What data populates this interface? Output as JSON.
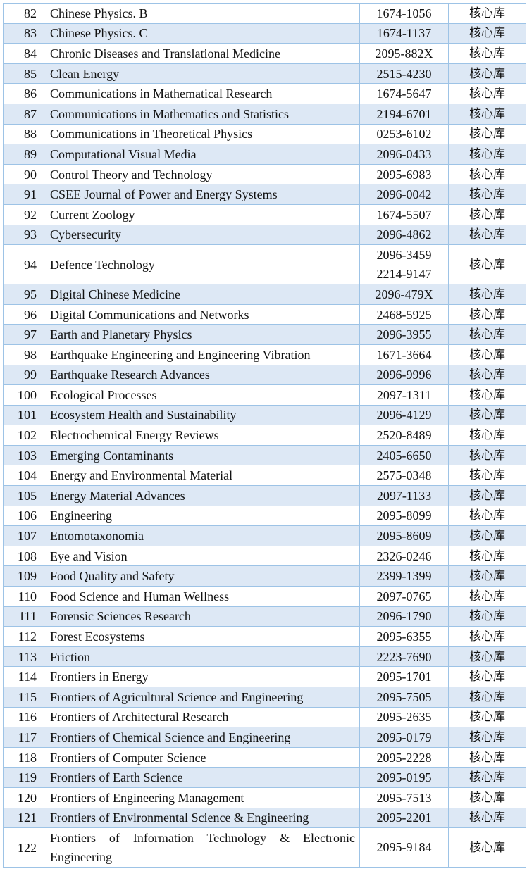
{
  "rows": [
    {
      "no": "82",
      "title": "Chinese Physics. B",
      "issn": [
        "1674-1056"
      ],
      "library": "核心库"
    },
    {
      "no": "83",
      "title": "Chinese Physics. C",
      "issn": [
        "1674-1137"
      ],
      "library": "核心库"
    },
    {
      "no": "84",
      "title": "Chronic Diseases and Translational Medicine",
      "issn": [
        "2095-882X"
      ],
      "library": "核心库"
    },
    {
      "no": "85",
      "title": "Clean Energy",
      "issn": [
        "2515-4230"
      ],
      "library": "核心库"
    },
    {
      "no": "86",
      "title": "Communications in Mathematical Research",
      "issn": [
        "1674-5647"
      ],
      "library": "核心库"
    },
    {
      "no": "87",
      "title": "Communications in Mathematics and Statistics",
      "issn": [
        "2194-6701"
      ],
      "library": "核心库"
    },
    {
      "no": "88",
      "title": "Communications in Theoretical Physics",
      "issn": [
        "0253-6102"
      ],
      "library": "核心库"
    },
    {
      "no": "89",
      "title": "Computational Visual Media",
      "issn": [
        "2096-0433"
      ],
      "library": "核心库"
    },
    {
      "no": "90",
      "title": "Control Theory and Technology",
      "issn": [
        "2095-6983"
      ],
      "library": "核心库"
    },
    {
      "no": "91",
      "title": "CSEE Journal of Power and Energy Systems",
      "issn": [
        "2096-0042"
      ],
      "library": "核心库"
    },
    {
      "no": "92",
      "title": "Current Zoology",
      "issn": [
        "1674-5507"
      ],
      "library": "核心库"
    },
    {
      "no": "93",
      "title": "Cybersecurity",
      "issn": [
        "2096-4862"
      ],
      "library": "核心库"
    },
    {
      "no": "94",
      "title": "Defence Technology",
      "issn": [
        "2096-3459",
        "2214-9147"
      ],
      "library": "核心库"
    },
    {
      "no": "95",
      "title": "Digital Chinese Medicine",
      "issn": [
        "2096-479X"
      ],
      "library": "核心库"
    },
    {
      "no": "96",
      "title": "Digital Communications and Networks",
      "issn": [
        "2468-5925"
      ],
      "library": "核心库"
    },
    {
      "no": "97",
      "title": "Earth and Planetary Physics",
      "issn": [
        "2096-3955"
      ],
      "library": "核心库"
    },
    {
      "no": "98",
      "title": "Earthquake Engineering and Engineering Vibration",
      "issn": [
        "1671-3664"
      ],
      "library": "核心库"
    },
    {
      "no": "99",
      "title": "Earthquake Research Advances",
      "issn": [
        "2096-9996"
      ],
      "library": "核心库"
    },
    {
      "no": "100",
      "title": "Ecological Processes",
      "issn": [
        "2097-1311"
      ],
      "library": "核心库"
    },
    {
      "no": "101",
      "title": "Ecosystem Health and Sustainability",
      "issn": [
        "2096-4129"
      ],
      "library": "核心库"
    },
    {
      "no": "102",
      "title": "Electrochemical Energy Reviews",
      "issn": [
        "2520-8489"
      ],
      "library": "核心库"
    },
    {
      "no": "103",
      "title": "Emerging Contaminants",
      "issn": [
        "2405-6650"
      ],
      "library": "核心库"
    },
    {
      "no": "104",
      "title": "Energy and Environmental Material",
      "issn": [
        "2575-0348"
      ],
      "library": "核心库"
    },
    {
      "no": "105",
      "title": "Energy Material Advances",
      "issn": [
        "2097-1133"
      ],
      "library": "核心库"
    },
    {
      "no": "106",
      "title": "Engineering",
      "issn": [
        "2095-8099"
      ],
      "library": "核心库"
    },
    {
      "no": "107",
      "title": "Entomotaxonomia",
      "issn": [
        "2095-8609"
      ],
      "library": "核心库"
    },
    {
      "no": "108",
      "title": "Eye and Vision",
      "issn": [
        "2326-0246"
      ],
      "library": "核心库"
    },
    {
      "no": "109",
      "title": "Food Quality and Safety",
      "issn": [
        "2399-1399"
      ],
      "library": "核心库"
    },
    {
      "no": "110",
      "title": "Food Science and Human Wellness",
      "issn": [
        "2097-0765"
      ],
      "library": "核心库"
    },
    {
      "no": "111",
      "title": "Forensic Sciences Research",
      "issn": [
        "2096-1790"
      ],
      "library": "核心库"
    },
    {
      "no": "112",
      "title": "Forest Ecosystems",
      "issn": [
        "2095-6355"
      ],
      "library": "核心库"
    },
    {
      "no": "113",
      "title": "Friction",
      "issn": [
        "2223-7690"
      ],
      "library": "核心库"
    },
    {
      "no": "114",
      "title": "Frontiers in Energy",
      "issn": [
        "2095-1701"
      ],
      "library": "核心库"
    },
    {
      "no": "115",
      "title": "Frontiers of Agricultural Science and Engineering",
      "issn": [
        "2095-7505"
      ],
      "library": "核心库"
    },
    {
      "no": "116",
      "title": "Frontiers of Architectural Research",
      "issn": [
        "2095-2635"
      ],
      "library": "核心库"
    },
    {
      "no": "117",
      "title": "Frontiers of Chemical Science and Engineering",
      "issn": [
        "2095-0179"
      ],
      "library": "核心库"
    },
    {
      "no": "118",
      "title": "Frontiers of Computer Science",
      "issn": [
        "2095-2228"
      ],
      "library": "核心库"
    },
    {
      "no": "119",
      "title": "Frontiers of Earth Science",
      "issn": [
        "2095-0195"
      ],
      "library": "核心库"
    },
    {
      "no": "120",
      "title": "Frontiers of Engineering Management",
      "issn": [
        "2095-7513"
      ],
      "library": "核心库"
    },
    {
      "no": "121",
      "title": "Frontiers of Environmental Science & Engineering",
      "issn": [
        "2095-2201"
      ],
      "library": "核心库"
    },
    {
      "no": "122",
      "title": "Frontiers of Information Technology & Electronic Engineering",
      "issn": [
        "2095-9184"
      ],
      "library": "核心库"
    }
  ]
}
